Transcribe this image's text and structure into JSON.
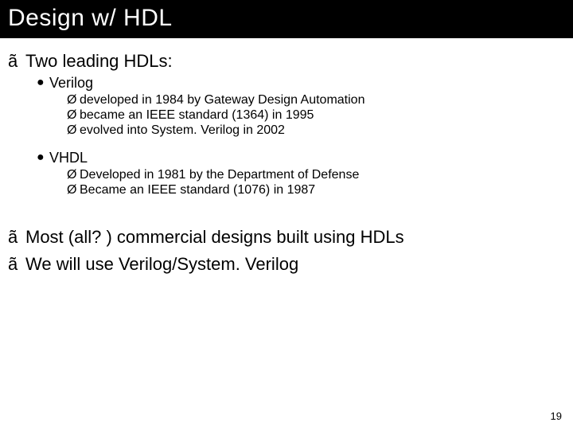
{
  "title": "Design w/ HDL",
  "page_number": "19",
  "colors": {
    "title_bg": "#000000",
    "title_fg": "#ffffff",
    "body_fg": "#000000",
    "page_bg": "#ffffff"
  },
  "bullets": {
    "l1_marker": "ã",
    "l2_marker": "●",
    "l3_marker": "Ø"
  },
  "l1_items": {
    "a": "Two leading HDLs:",
    "b": "Most (all? ) commercial designs built using HDLs",
    "c": "We will use Verilog/System. Verilog"
  },
  "l2_items": {
    "verilog": "Verilog",
    "vhdl": "VHDL"
  },
  "l3_items": {
    "v1": "developed in 1984 by Gateway Design Automation",
    "v2": "became an IEEE standard (1364) in 1995",
    "v3": "evolved into System. Verilog in 2002",
    "h1": "Developed in 1981 by the Department of Defense",
    "h2": "Became an IEEE standard (1076) in 1987"
  }
}
